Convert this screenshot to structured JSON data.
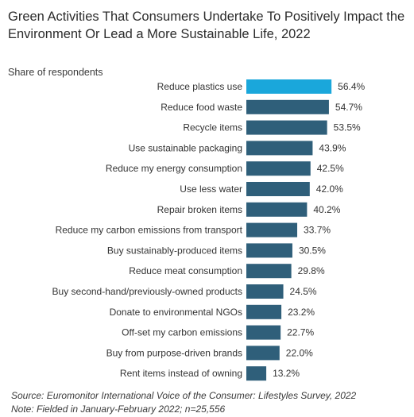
{
  "chart_data": {
    "type": "bar",
    "orientation": "horizontal",
    "title": "Green Activities That Consumers Undertake To Positively Impact the Environment Or Lead a More Sustainable Life, 2022",
    "subtitle": "Share of respondents",
    "categories": [
      "Reduce plastics use",
      "Reduce food waste",
      "Recycle items",
      "Use sustainable packaging",
      "Reduce my energy consumption",
      "Use less water",
      "Repair broken items",
      "Reduce my carbon emissions from transport",
      "Buy sustainably-produced items",
      "Reduce meat consumption",
      "Buy second-hand/previously-owned products",
      "Donate to environmental NGOs",
      "Off-set my carbon emissions",
      "Buy from purpose-driven brands",
      "Rent items instead of owning"
    ],
    "values": [
      56.4,
      54.7,
      53.5,
      43.9,
      42.5,
      42.0,
      40.2,
      33.7,
      30.5,
      29.8,
      24.5,
      23.2,
      22.7,
      22.0,
      13.2
    ],
    "value_labels": [
      "56.4%",
      "54.7%",
      "53.5%",
      "43.9%",
      "42.5%",
      "42.0%",
      "40.2%",
      "33.7%",
      "30.5%",
      "29.8%",
      "24.5%",
      "23.2%",
      "22.7%",
      "22.0%",
      "13.2%"
    ],
    "highlight_index": 0,
    "colors": {
      "highlight": "#1aa7db",
      "default": "#2f5f7a"
    },
    "xlim": [
      0,
      100
    ],
    "grid": false,
    "legend": "none"
  },
  "footer": {
    "source": "Source: Euromonitor International Voice of the Consumer: Lifestyles Survey, 2022",
    "note": "Note: Fielded in January-February 2022; n=25,556"
  }
}
